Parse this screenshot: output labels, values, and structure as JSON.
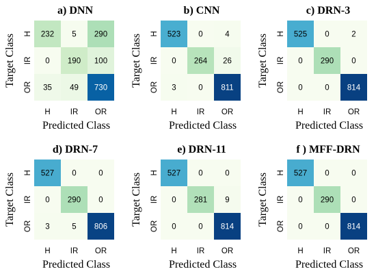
{
  "chart_data": [
    {
      "type": "heatmap",
      "title": "a) DNN",
      "xlabel": "Predicted Class",
      "ylabel": "Target Class",
      "x_categories": [
        "H",
        "IR",
        "OR"
      ],
      "y_categories": [
        "H",
        "IR",
        "OR"
      ],
      "matrix": [
        [
          232,
          5,
          290
        ],
        [
          0,
          190,
          100
        ],
        [
          35,
          49,
          730
        ]
      ]
    },
    {
      "type": "heatmap",
      "title": "b) CNN",
      "xlabel": "Predicted Class",
      "ylabel": "Target Class",
      "x_categories": [
        "H",
        "IR",
        "OR"
      ],
      "y_categories": [
        "H",
        "IR",
        "OR"
      ],
      "matrix": [
        [
          523,
          0,
          4
        ],
        [
          0,
          264,
          26
        ],
        [
          3,
          0,
          811
        ]
      ]
    },
    {
      "type": "heatmap",
      "title": "c) DRN-3",
      "xlabel": "Predicted Class",
      "ylabel": "Target Class",
      "x_categories": [
        "H",
        "IR",
        "OR"
      ],
      "y_categories": [
        "H",
        "IR",
        "OR"
      ],
      "matrix": [
        [
          525,
          0,
          2
        ],
        [
          0,
          290,
          0
        ],
        [
          0,
          0,
          814
        ]
      ]
    },
    {
      "type": "heatmap",
      "title": "d) DRN-7",
      "xlabel": "Predicted Class",
      "ylabel": "Target Class",
      "x_categories": [
        "H",
        "IR",
        "OR"
      ],
      "y_categories": [
        "H",
        "IR",
        "OR"
      ],
      "matrix": [
        [
          527,
          0,
          0
        ],
        [
          0,
          290,
          0
        ],
        [
          3,
          5,
          806
        ]
      ]
    },
    {
      "type": "heatmap",
      "title": "e) DRN-11",
      "xlabel": "Predicted Class",
      "ylabel": "Target Class",
      "x_categories": [
        "H",
        "IR",
        "OR"
      ],
      "y_categories": [
        "H",
        "IR",
        "OR"
      ],
      "matrix": [
        [
          527,
          0,
          0
        ],
        [
          0,
          281,
          9
        ],
        [
          0,
          0,
          814
        ]
      ]
    },
    {
      "type": "heatmap",
      "title": "f ) MFF-DRN",
      "xlabel": "Predicted Class",
      "ylabel": "Target Class",
      "x_categories": [
        "H",
        "IR",
        "OR"
      ],
      "y_categories": [
        "H",
        "IR",
        "OR"
      ],
      "matrix": [
        [
          527,
          0,
          0
        ],
        [
          0,
          290,
          0
        ],
        [
          0,
          0,
          814
        ]
      ]
    }
  ],
  "colormap": {
    "stops": [
      "#f7fcf0",
      "#e0f3db",
      "#ccebc5",
      "#a8ddb5",
      "#7bccc4",
      "#4eb3d3",
      "#2b8cbe",
      "#0868ac",
      "#084081"
    ],
    "vmin": 0,
    "vmax": 814
  }
}
